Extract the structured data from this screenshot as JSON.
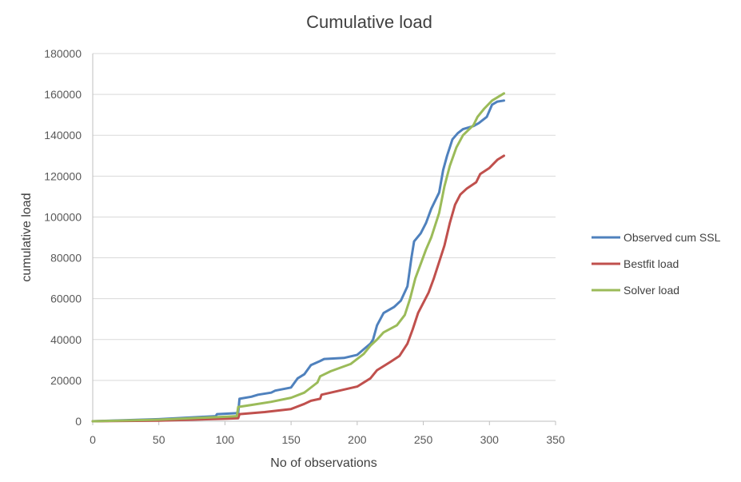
{
  "chart_data": {
    "type": "line",
    "title": "Cumulative load",
    "xlabel": "No of observations",
    "ylabel": "cumulative load",
    "xlim": [
      0,
      350
    ],
    "ylim": [
      0,
      180000
    ],
    "x_ticks": [
      "0",
      "50",
      "100",
      "150",
      "200",
      "250",
      "300",
      "350"
    ],
    "y_ticks": [
      "0",
      "20000",
      "40000",
      "60000",
      "80000",
      "100000",
      "120000",
      "140000",
      "160000",
      "180000"
    ],
    "grid": "horizontal",
    "legend_position": "right",
    "series": [
      {
        "name": "Observed cum SSL",
        "color": "#4f81bd",
        "points": [
          [
            0,
            0
          ],
          [
            50,
            1000
          ],
          [
            93,
            2500
          ],
          [
            94,
            3500
          ],
          [
            110,
            4000
          ],
          [
            111,
            11000
          ],
          [
            120,
            12000
          ],
          [
            125,
            13000
          ],
          [
            135,
            14000
          ],
          [
            138,
            15000
          ],
          [
            150,
            16500
          ],
          [
            155,
            21000
          ],
          [
            160,
            23000
          ],
          [
            165,
            27500
          ],
          [
            172,
            29500
          ],
          [
            175,
            30500
          ],
          [
            190,
            31000
          ],
          [
            200,
            32500
          ],
          [
            210,
            38000
          ],
          [
            212,
            40000
          ],
          [
            215,
            47000
          ],
          [
            220,
            53000
          ],
          [
            228,
            56000
          ],
          [
            233,
            59000
          ],
          [
            238,
            66000
          ],
          [
            241,
            80000
          ],
          [
            243,
            88000
          ],
          [
            248,
            92000
          ],
          [
            252,
            97000
          ],
          [
            256,
            104000
          ],
          [
            262,
            112000
          ],
          [
            265,
            123000
          ],
          [
            268,
            130000
          ],
          [
            272,
            138000
          ],
          [
            276,
            141000
          ],
          [
            280,
            143000
          ],
          [
            288,
            144500
          ],
          [
            292,
            146000
          ],
          [
            298,
            149000
          ],
          [
            302,
            155000
          ],
          [
            306,
            156500
          ],
          [
            311,
            157000
          ]
        ]
      },
      {
        "name": "Bestfit load",
        "color": "#c0504d",
        "points": [
          [
            0,
            0
          ],
          [
            50,
            300
          ],
          [
            100,
            1200
          ],
          [
            110,
            1500
          ],
          [
            111,
            3500
          ],
          [
            130,
            4500
          ],
          [
            150,
            6000
          ],
          [
            160,
            8500
          ],
          [
            165,
            10000
          ],
          [
            172,
            11000
          ],
          [
            173,
            13000
          ],
          [
            180,
            14000
          ],
          [
            200,
            17000
          ],
          [
            210,
            21000
          ],
          [
            215,
            25000
          ],
          [
            225,
            29000
          ],
          [
            232,
            32000
          ],
          [
            238,
            38000
          ],
          [
            242,
            45000
          ],
          [
            246,
            53000
          ],
          [
            250,
            58000
          ],
          [
            254,
            63000
          ],
          [
            258,
            70000
          ],
          [
            262,
            78000
          ],
          [
            266,
            86000
          ],
          [
            270,
            97000
          ],
          [
            274,
            106000
          ],
          [
            278,
            111000
          ],
          [
            283,
            114000
          ],
          [
            290,
            117000
          ],
          [
            293,
            121000
          ],
          [
            300,
            124000
          ],
          [
            306,
            128000
          ],
          [
            311,
            130000
          ]
        ]
      },
      {
        "name": "Solver load",
        "color": "#9bbb59",
        "points": [
          [
            0,
            0
          ],
          [
            50,
            800
          ],
          [
            100,
            2200
          ],
          [
            109,
            2500
          ],
          [
            110,
            7000
          ],
          [
            120,
            8000
          ],
          [
            135,
            9500
          ],
          [
            150,
            11500
          ],
          [
            160,
            14000
          ],
          [
            168,
            18000
          ],
          [
            170,
            19000
          ],
          [
            172,
            22000
          ],
          [
            180,
            24500
          ],
          [
            195,
            28000
          ],
          [
            205,
            33000
          ],
          [
            210,
            37000
          ],
          [
            215,
            40000
          ],
          [
            220,
            43500
          ],
          [
            230,
            47000
          ],
          [
            236,
            52000
          ],
          [
            240,
            60000
          ],
          [
            244,
            70000
          ],
          [
            248,
            77000
          ],
          [
            252,
            84000
          ],
          [
            256,
            90000
          ],
          [
            262,
            102000
          ],
          [
            266,
            115000
          ],
          [
            270,
            125000
          ],
          [
            275,
            134000
          ],
          [
            280,
            140000
          ],
          [
            288,
            145000
          ],
          [
            291,
            149000
          ],
          [
            296,
            153000
          ],
          [
            302,
            157000
          ],
          [
            311,
            160500
          ]
        ]
      }
    ]
  }
}
